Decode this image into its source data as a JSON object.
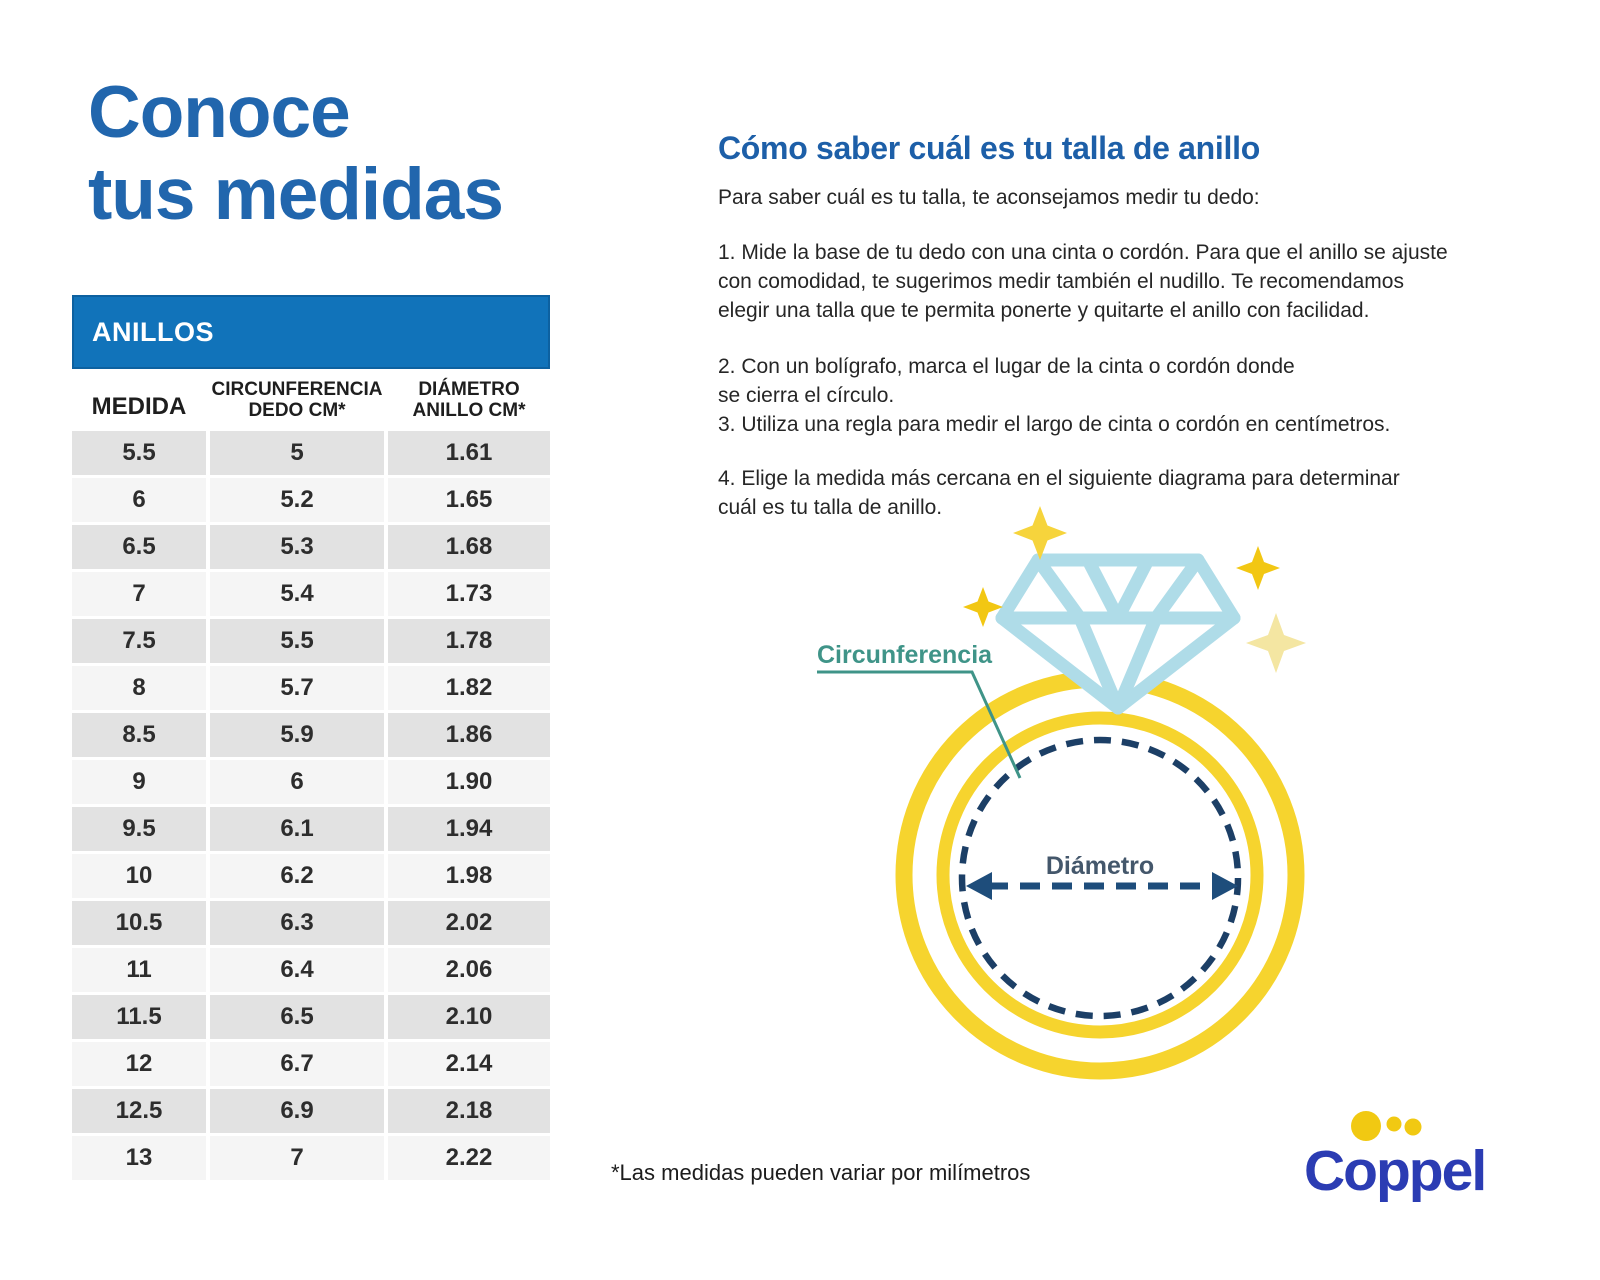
{
  "title": {
    "line1": "Conoce",
    "line2": "tus medidas"
  },
  "table": {
    "title": "ANILLOS",
    "columns": [
      "MEDIDA",
      "CIRCUNFERENCIA\nDEDO CM*",
      "DIÁMETRO\nANILLO CM*"
    ],
    "rows": [
      [
        "5.5",
        "5",
        "1.61"
      ],
      [
        "6",
        "5.2",
        "1.65"
      ],
      [
        "6.5",
        "5.3",
        "1.68"
      ],
      [
        "7",
        "5.4",
        "1.73"
      ],
      [
        "7.5",
        "5.5",
        "1.78"
      ],
      [
        "8",
        "5.7",
        "1.82"
      ],
      [
        "8.5",
        "5.9",
        "1.86"
      ],
      [
        "9",
        "6",
        "1.90"
      ],
      [
        "9.5",
        "6.1",
        "1.94"
      ],
      [
        "10",
        "6.2",
        "1.98"
      ],
      [
        "10.5",
        "6.3",
        "2.02"
      ],
      [
        "11",
        "6.4",
        "2.06"
      ],
      [
        "11.5",
        "6.5",
        "2.10"
      ],
      [
        "12",
        "6.7",
        "2.14"
      ],
      [
        "12.5",
        "6.9",
        "2.18"
      ],
      [
        "13",
        "7",
        "2.22"
      ]
    ]
  },
  "guide": {
    "heading": "Cómo saber cuál es tu talla de anillo",
    "intro": "Para saber cuál es tu talla, te aconsejamos medir tu dedo:",
    "steps": [
      "1. Mide la base de tu dedo con una cinta o cordón. Para que el anillo se ajuste\ncon comodidad, te sugerimos medir también el nudillo. Te recomendamos\nelegir una talla que te permita ponerte y quitarte el anillo con facilidad.",
      "2. Con un bolígrafo, marca el lugar de la cinta o cordón donde\nse cierra el círculo.",
      "3. Utiliza una regla para medir el largo de cinta o cordón en centímetros.",
      "4. Elige la medida más cercana en el siguiente diagrama para determinar\ncuál es tu talla de anillo."
    ]
  },
  "diagram": {
    "circumference_label": "Circunferencia",
    "diameter_label": "Diámetro"
  },
  "footnote": "*Las medidas pueden variar por milímetros",
  "logo": {
    "text": "Coppel"
  },
  "colors": {
    "title_blue": "#2166ad",
    "heading_blue": "#1d5fa8",
    "table_header_bg": "#1173ba",
    "row_dark": "#e2e2e2",
    "row_light": "#f5f5f5",
    "ring_yellow": "#f6d42e",
    "diamond_blue": "#afdce8",
    "dash_navy": "#1c3f66",
    "pointer_teal": "#3f9488",
    "sparkle_yellow": "#f2c713",
    "sparkle_pale": "#f4e6a2",
    "logo_blue": "#2b3cb3",
    "logo_yellow": "#f1c912"
  }
}
